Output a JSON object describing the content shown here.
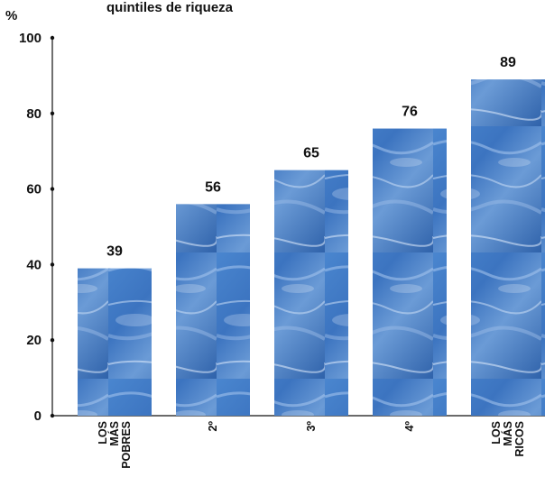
{
  "chart_data": {
    "type": "bar",
    "title": "quintiles de riqueza",
    "ylabel": "%",
    "ylim": [
      0,
      100
    ],
    "yticks": [
      0,
      20,
      40,
      60,
      80,
      100
    ],
    "grid": false,
    "categories": [
      [
        "LOS",
        "MÁS",
        "POBRES"
      ],
      [
        "2º"
      ],
      [
        "3º"
      ],
      [
        "4º"
      ],
      [
        "LOS",
        "MÁS",
        "RICOS"
      ]
    ],
    "values": [
      39,
      56,
      65,
      76,
      89
    ],
    "data_labels": [
      "39",
      "56",
      "65",
      "76",
      "89"
    ],
    "bar_style": "blue water texture",
    "colors": {
      "bar_base": "#3f78c2",
      "bar_light": "#8fb4e3",
      "bar_dark": "#2d5fa6",
      "text": "#111111"
    }
  }
}
